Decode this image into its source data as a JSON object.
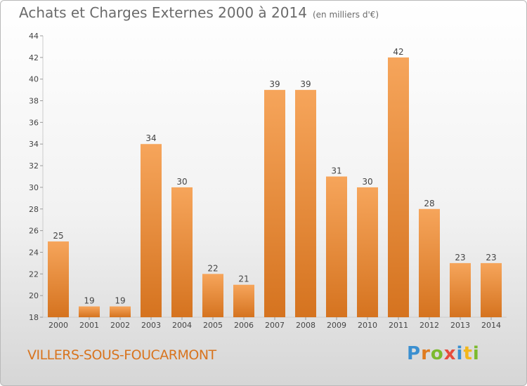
{
  "title": "Achats et Charges Externes 2000 à 2014",
  "unit": "(en milliers d'€)",
  "commune": "VILLERS-SOUS-FOUCARMONT",
  "logo": {
    "letters": [
      "P",
      "r",
      "o",
      "x",
      "i",
      "t",
      "i"
    ],
    "colors": [
      "#3a8fd0",
      "#e07b1e",
      "#7cba2e",
      "#e74c3c",
      "#3a8fd0",
      "#f2b71c",
      "#7cba2e"
    ]
  },
  "colors": {
    "bar_top": "#f6a55b",
    "bar_bottom": "#d5731f",
    "axis": "#cccccc",
    "text": "#444444"
  },
  "chart_data": {
    "type": "bar",
    "categories": [
      "2000",
      "2001",
      "2002",
      "2003",
      "2004",
      "2005",
      "2006",
      "2007",
      "2008",
      "2009",
      "2010",
      "2011",
      "2012",
      "2013",
      "2014"
    ],
    "values": [
      25,
      19,
      19,
      34,
      30,
      22,
      21,
      39,
      39,
      31,
      30,
      42,
      28,
      23,
      23
    ],
    "ylim": [
      18,
      44
    ],
    "yticks": [
      18,
      20,
      22,
      24,
      26,
      28,
      30,
      32,
      34,
      36,
      38,
      40,
      42,
      44
    ],
    "grid": false,
    "title": "Achats et Charges Externes 2000 à 2014",
    "xlabel": "",
    "ylabel": ""
  }
}
